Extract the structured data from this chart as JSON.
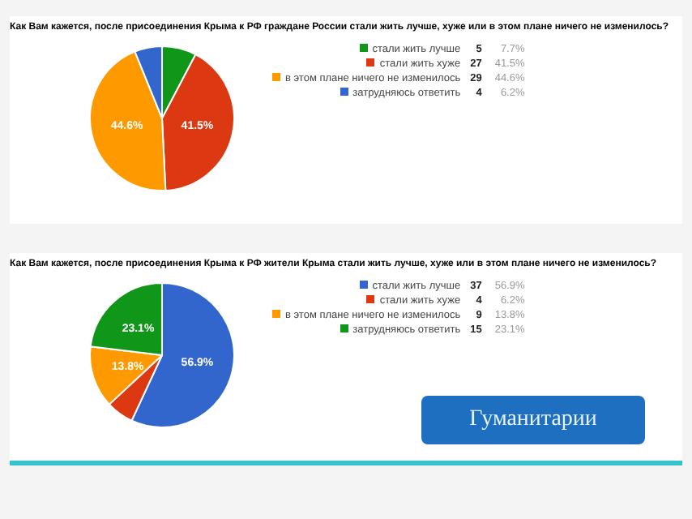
{
  "chart_data": [
    {
      "type": "pie",
      "title": "Как Вам кажется, после присоединения Крыма к РФ граждане России стали жить лучше, хуже или в этом плане ничего не изменилось?",
      "categories": [
        "стали жить лучше",
        "стали жить хуже",
        "в этом плане ничего не изменилось",
        "затрудняюсь ответить"
      ],
      "values": [
        5,
        27,
        29,
        4
      ],
      "colors": [
        "#109618",
        "#dc3912",
        "#ff9900",
        "#3366cc"
      ],
      "data_labels": true,
      "legend": "right",
      "annotations": [
        {
          "text": "7.7%",
          "x": "стали жить лучше"
        },
        {
          "text": "41.5%",
          "x": "стали жить хуже"
        },
        {
          "text": "44.6%",
          "x": "в этом плане ничего не изменилось"
        },
        {
          "text": "6.2%",
          "x": "затрудняюсь ответить"
        }
      ]
    },
    {
      "type": "pie",
      "title": "Как Вам кажется, после присоединения Крыма к РФ жители Крыма стали жить лучше, хуже или в этом плане ничего не изменилось?",
      "categories": [
        "стали жить лучше",
        "стали жить хуже",
        "в этом плане ничего не изменилось",
        "затрудняюсь ответить"
      ],
      "values": [
        37,
        4,
        9,
        15
      ],
      "colors": [
        "#3366cc",
        "#dc3912",
        "#ff9900",
        "#109618"
      ],
      "data_labels": true,
      "legend": "right",
      "annotations": [
        {
          "text": "56.9%",
          "x": "стали жить лучше"
        },
        {
          "text": "6.2%",
          "x": "стали жить хуже"
        },
        {
          "text": "13.8%",
          "x": "в этом плане ничего не изменилось"
        },
        {
          "text": "23.1%",
          "x": "затрудняюсь ответить"
        },
        "Гуманитарии"
      ]
    }
  ]
}
